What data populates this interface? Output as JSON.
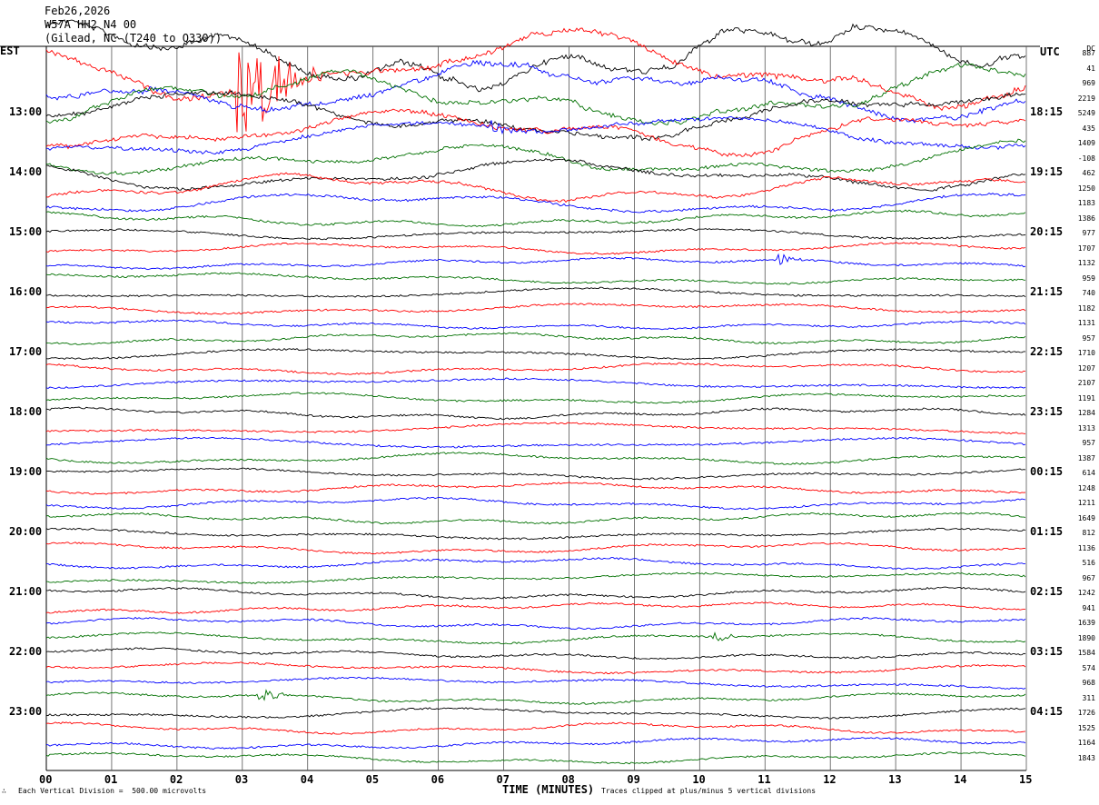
{
  "header": {
    "date": "Feb26,2026",
    "channel": "W57A HH2 N4 00",
    "station": "(Gilead, NC (T240 to Q330))"
  },
  "labels": {
    "left_zone": "EST",
    "right_zone": "UTC",
    "dc_header": "DC"
  },
  "footer": {
    "division": "Each Vertical Division =  500.00 microvolts",
    "xaxis_title": "TIME (MINUTES)",
    "clip_note": "Traces clipped at plus/minus 5 vertical divisions",
    "mark": "∴"
  },
  "colors": {
    "cycle": [
      "#000000",
      "#ff0000",
      "#0000ff",
      "#007000"
    ],
    "grid": "#000000"
  },
  "chart_data": {
    "type": "line",
    "title": "",
    "xlabel": "TIME (MINUTES)",
    "xlim": [
      0,
      15
    ],
    "x_ticks": [
      "00",
      "01",
      "02",
      "03",
      "04",
      "05",
      "06",
      "07",
      "08",
      "09",
      "10",
      "11",
      "12",
      "13",
      "14",
      "15"
    ],
    "left_time_labels": [
      "13:00",
      "14:00",
      "15:00",
      "16:00",
      "17:00",
      "18:00",
      "19:00",
      "20:00",
      "21:00",
      "22:00",
      "23:00"
    ],
    "right_time_labels": [
      "18:15",
      "19:15",
      "20:15",
      "21:15",
      "22:15",
      "23:15",
      "00:15",
      "01:15",
      "02:15",
      "03:15",
      "04:15"
    ],
    "trace_count": 48,
    "dc_offsets": [
      "887",
      "41",
      "969",
      "2219",
      "5249",
      "435",
      "1409",
      "-108",
      "462",
      "1250",
      "1183",
      "1386",
      "977",
      "1707",
      "1132",
      "959",
      "740",
      "1182",
      "1131",
      "957",
      "1710",
      "1207",
      "2107",
      "1191",
      "1284",
      "1313",
      "957",
      "1387",
      "614",
      "1248",
      "1211",
      "1649",
      "812",
      "1136",
      "516",
      "967",
      "1242",
      "941",
      "1639",
      "1890",
      "1584",
      "574",
      "968",
      "311",
      "1726",
      "1525",
      "1164",
      "1843"
    ],
    "events": [
      {
        "trace": 1,
        "minute_start": 2.9,
        "minute_end": 4.2,
        "amplitude": "clipped",
        "note": "large red burst"
      },
      {
        "trace": 14,
        "minute_start": 11.2,
        "minute_end": 11.6,
        "amplitude": "small"
      },
      {
        "trace": 39,
        "minute_start": 10.2,
        "minute_end": 10.6,
        "amplitude": "small"
      },
      {
        "trace": 43,
        "minute_start": 3.2,
        "minute_end": 3.8,
        "amplitude": "small"
      },
      {
        "trace": 6,
        "minute_start": 6.8,
        "minute_end": 7.3,
        "amplitude": "small"
      }
    ]
  }
}
